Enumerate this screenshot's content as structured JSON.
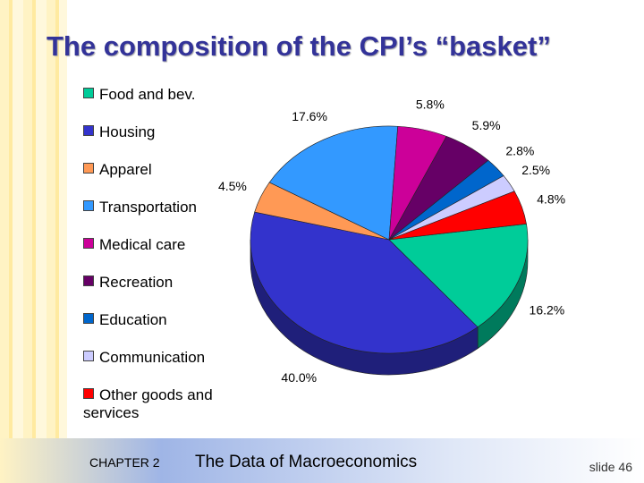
{
  "chart_data": {
    "type": "pie",
    "title": "The composition of the CPI’s “basket”",
    "categories": [
      "Food and bev.",
      "Housing",
      "Apparel",
      "Transportation",
      "Medical care",
      "Recreation",
      "Education",
      "Communication",
      "Other goods and services"
    ],
    "values": [
      16.2,
      40.0,
      4.5,
      17.6,
      5.8,
      5.9,
      2.8,
      2.5,
      4.8
    ],
    "value_labels": [
      "16.2%",
      "40.0%",
      "4.5%",
      "17.6%",
      "5.8%",
      "5.9%",
      "2.8%",
      "2.5%",
      "4.8%"
    ],
    "colors": [
      "#00cc99",
      "#3333cc",
      "#ff9955",
      "#3399ff",
      "#cc0099",
      "#660066",
      "#0066cc",
      "#ccccff",
      "#ff0000"
    ],
    "legend": "left"
  },
  "footer": {
    "chapter": "CHAPTER 2",
    "subject": "The Data of Macroeconomics",
    "slide": "slide 46"
  }
}
